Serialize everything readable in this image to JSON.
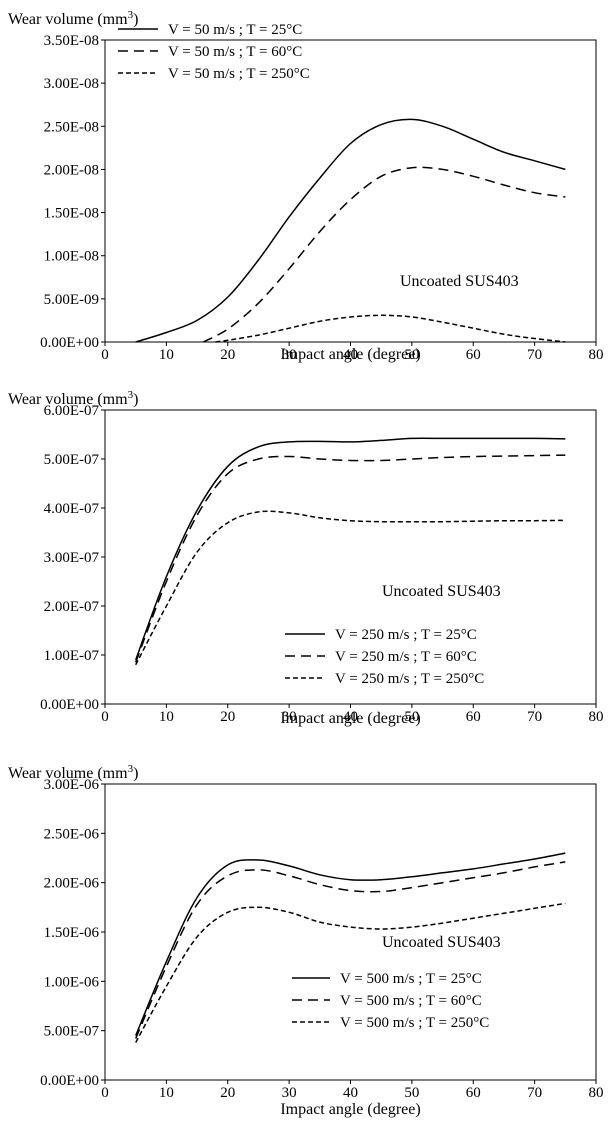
{
  "figure": {
    "chart_data": [
      {
        "type": "line",
        "ylabel": "Wear volume (mm3)",
        "xlabel": "Impact angle (degree)",
        "xlim": [
          0,
          80
        ],
        "ylim": [
          0,
          3.5e-08
        ],
        "x_ticks": [
          "0",
          "10",
          "20",
          "30",
          "40",
          "50",
          "60",
          "70",
          "80"
        ],
        "y_ticks": [
          "0.00E+00",
          "5.00E-09",
          "1.00E-08",
          "1.50E-08",
          "2.00E-08",
          "2.50E-08",
          "3.00E-08",
          "3.50E-08"
        ],
        "legend_position": "top-left",
        "annotation": "Uncoated SUS403",
        "grid": false,
        "series": [
          {
            "name": "V = 50 m/s ; T = 25°C",
            "style": "solid",
            "x": [
              5,
              10,
              15,
              20,
              25,
              30,
              35,
              40,
              45,
              50,
              55,
              60,
              65,
              70,
              75
            ],
            "y": [
              0,
              1.1e-09,
              2.5e-09,
              5.2e-09,
              9.5e-09,
              1.45e-08,
              1.9e-08,
              2.3e-08,
              2.52e-08,
              2.58e-08,
              2.5e-08,
              2.35e-08,
              2.2e-08,
              2.1e-08,
              2e-08
            ]
          },
          {
            "name": "V = 50 m/s ; T = 60°C",
            "style": "dashed",
            "x": [
              16,
              20,
              25,
              30,
              35,
              40,
              45,
              50,
              55,
              60,
              65,
              70,
              75
            ],
            "y": [
              0,
              1.5e-09,
              4.5e-09,
              8.5e-09,
              1.28e-08,
              1.65e-08,
              1.92e-08,
              2.02e-08,
              2e-08,
              1.92e-08,
              1.82e-08,
              1.73e-08,
              1.68e-08
            ]
          },
          {
            "name": "V = 50 m/s ; T = 250°C",
            "style": "dotted",
            "x": [
              18,
              20,
              25,
              30,
              35,
              40,
              45,
              50,
              55,
              60,
              65,
              70,
              75
            ],
            "y": [
              0,
              2e-10,
              8e-10,
              1.6e-09,
              2.4e-09,
              2.9e-09,
              3.1e-09,
              2.9e-09,
              2.3e-09,
              1.6e-09,
              9e-10,
              4e-10,
              0
            ]
          }
        ]
      },
      {
        "type": "line",
        "ylabel": "Wear volume (mm3)",
        "xlabel": "Impact angle (degree)",
        "xlim": [
          0,
          80
        ],
        "ylim": [
          0,
          6e-07
        ],
        "x_ticks": [
          "0",
          "10",
          "20",
          "30",
          "40",
          "50",
          "60",
          "70",
          "80"
        ],
        "y_ticks": [
          "0.00E+00",
          "1.00E-07",
          "2.00E-07",
          "3.00E-07",
          "4.00E-07",
          "5.00E-07",
          "6.00E-07"
        ],
        "legend_position": "bottom-right",
        "annotation": "Uncoated SUS403",
        "grid": false,
        "series": [
          {
            "name": "V = 250 m/s ; T = 25°C",
            "style": "solid",
            "x": [
              5,
              10,
              15,
              20,
              25,
              30,
              35,
              40,
              45,
              50,
              55,
              60,
              65,
              70,
              75
            ],
            "y": [
              9e-08,
              2.6e-07,
              3.95e-07,
              4.85e-07,
              5.25e-07,
              5.35e-07,
              5.36e-07,
              5.35e-07,
              5.38e-07,
              5.42e-07,
              5.42e-07,
              5.42e-07,
              5.42e-07,
              5.42e-07,
              5.41e-07
            ]
          },
          {
            "name": "V = 250 m/s ; T = 60°C",
            "style": "dashed",
            "x": [
              5,
              10,
              15,
              20,
              25,
              30,
              35,
              40,
              45,
              50,
              55,
              60,
              65,
              70,
              75
            ],
            "y": [
              8.5e-08,
              2.5e-07,
              3.85e-07,
              4.7e-07,
              5e-07,
              5.05e-07,
              5e-07,
              4.97e-07,
              4.97e-07,
              5e-07,
              5.03e-07,
              5.05e-07,
              5.06e-07,
              5.07e-07,
              5.08e-07
            ]
          },
          {
            "name": "V = 250 m/s ; T = 250°C",
            "style": "dotted",
            "x": [
              5,
              10,
              15,
              20,
              25,
              30,
              35,
              40,
              45,
              50,
              55,
              60,
              65,
              70,
              75
            ],
            "y": [
              8e-08,
              2e-07,
              3.1e-07,
              3.7e-07,
              3.92e-07,
              3.9e-07,
              3.8e-07,
              3.74e-07,
              3.72e-07,
              3.72e-07,
              3.72e-07,
              3.73e-07,
              3.74e-07,
              3.74e-07,
              3.75e-07
            ]
          }
        ]
      },
      {
        "type": "line",
        "ylabel": "Wear volume (mm3)",
        "xlabel": "Impact angle (degree)",
        "xlim": [
          0,
          80
        ],
        "ylim": [
          0,
          3e-06
        ],
        "x_ticks": [
          "0",
          "10",
          "20",
          "30",
          "40",
          "50",
          "60",
          "70",
          "80"
        ],
        "y_ticks": [
          "0.00E+00",
          "5.00E-07",
          "1.00E-06",
          "1.50E-06",
          "2.00E-06",
          "2.50E-06",
          "3.00E-06"
        ],
        "legend_position": "bottom-right",
        "annotation": "Uncoated SUS403",
        "grid": false,
        "series": [
          {
            "name": "V = 500 m/s ; T = 25°C",
            "style": "solid",
            "x": [
              5,
              10,
              15,
              20,
              25,
              30,
              35,
              40,
              45,
              50,
              55,
              60,
              65,
              70,
              75
            ],
            "y": [
              4.5e-07,
              1.2e-06,
              1.85e-06,
              2.18e-06,
              2.23e-06,
              2.17e-06,
              2.08e-06,
              2.03e-06,
              2.03e-06,
              2.06e-06,
              2.1e-06,
              2.14e-06,
              2.19e-06,
              2.24e-06,
              2.3e-06
            ]
          },
          {
            "name": "V = 500 m/s ; T = 60°C",
            "style": "dashed",
            "x": [
              5,
              10,
              15,
              20,
              25,
              30,
              35,
              40,
              45,
              50,
              55,
              60,
              65,
              70,
              75
            ],
            "y": [
              4.2e-07,
              1.15e-06,
              1.78e-06,
              2.07e-06,
              2.13e-06,
              2.07e-06,
              1.98e-06,
              1.92e-06,
              1.91e-06,
              1.95e-06,
              2e-06,
              2.05e-06,
              2.1e-06,
              2.16e-06,
              2.21e-06
            ]
          },
          {
            "name": "V = 500 m/s ; T = 250°C",
            "style": "dotted",
            "x": [
              5,
              10,
              15,
              20,
              25,
              30,
              35,
              40,
              45,
              50,
              55,
              60,
              65,
              70,
              75
            ],
            "y": [
              3.8e-07,
              9.5e-07,
              1.45e-06,
              1.7e-06,
              1.75e-06,
              1.7e-06,
              1.6e-06,
              1.55e-06,
              1.53e-06,
              1.55e-06,
              1.59e-06,
              1.64e-06,
              1.69e-06,
              1.74e-06,
              1.79e-06
            ]
          }
        ]
      }
    ]
  }
}
